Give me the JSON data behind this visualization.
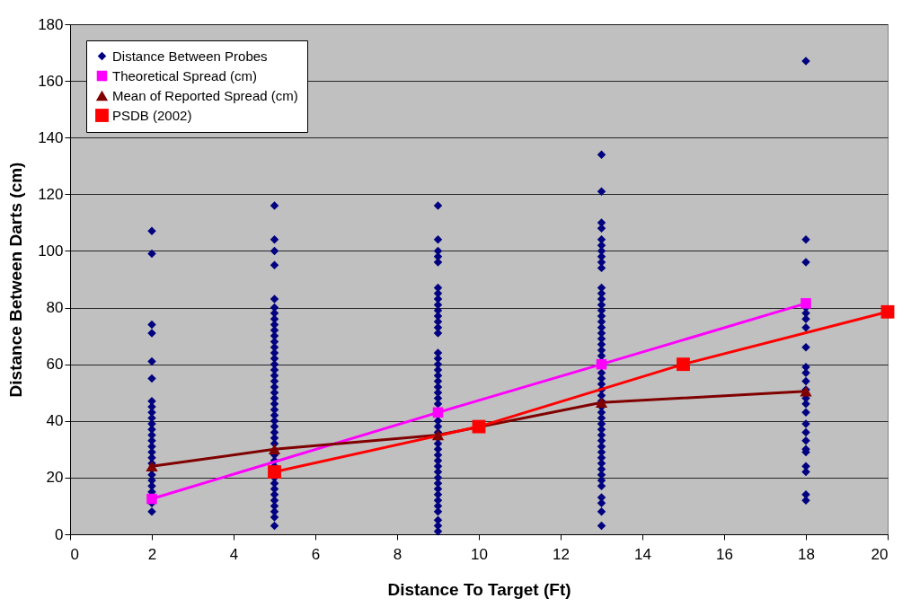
{
  "chart_data": {
    "type": "scatter",
    "xlabel": "Distance To Target (Ft)",
    "ylabel": "Distance Between Darts (cm)",
    "xlim": [
      0,
      20
    ],
    "ylim": [
      0,
      180
    ],
    "xticks": [
      0,
      2,
      4,
      6,
      8,
      10,
      12,
      14,
      16,
      18,
      20
    ],
    "yticks": [
      0,
      20,
      40,
      60,
      80,
      100,
      120,
      140,
      160,
      180
    ],
    "grid": "y",
    "legend": "top left",
    "series": [
      {
        "name": "Distance Between Probes",
        "marker": "diamond",
        "color": "#000080",
        "x": [
          2,
          2,
          2,
          2,
          2,
          2,
          2,
          2,
          2,
          2,
          2,
          2,
          2,
          2,
          2,
          2,
          2,
          2,
          2,
          2,
          2,
          2,
          2,
          2,
          2,
          5,
          5,
          5,
          5,
          5,
          5,
          5,
          5,
          5,
          5,
          5,
          5,
          5,
          5,
          5,
          5,
          5,
          5,
          5,
          5,
          5,
          5,
          5,
          5,
          5,
          5,
          5,
          5,
          5,
          5,
          5,
          5,
          5,
          5,
          5,
          5,
          5,
          5,
          5,
          5,
          5,
          5,
          9,
          9,
          9,
          9,
          9,
          9,
          9,
          9,
          9,
          9,
          9,
          9,
          9,
          9,
          9,
          9,
          9,
          9,
          9,
          9,
          9,
          9,
          9,
          9,
          9,
          9,
          9,
          9,
          9,
          9,
          9,
          9,
          9,
          9,
          9,
          9,
          9,
          9,
          9,
          9,
          9,
          9,
          9,
          9,
          9,
          13,
          13,
          13,
          13,
          13,
          13,
          13,
          13,
          13,
          13,
          13,
          13,
          13,
          13,
          13,
          13,
          13,
          13,
          13,
          13,
          13,
          13,
          13,
          13,
          13,
          13,
          13,
          13,
          13,
          13,
          13,
          13,
          13,
          13,
          13,
          13,
          13,
          13,
          13,
          13,
          13,
          13,
          13,
          13,
          13,
          13,
          13,
          13,
          13,
          18,
          18,
          18,
          18,
          18,
          18,
          18,
          18,
          18,
          18,
          18,
          18,
          18,
          18,
          18,
          18,
          18,
          18,
          18,
          18,
          18,
          18,
          18,
          18
        ],
        "values": [
          107,
          99,
          74,
          71,
          61,
          55,
          47,
          45,
          43,
          41,
          39,
          37,
          35,
          33,
          31,
          29,
          27,
          25,
          23,
          21,
          19,
          17,
          15,
          11,
          8,
          116,
          104,
          100,
          95,
          83,
          80,
          78,
          76,
          74,
          72,
          70,
          68,
          66,
          64,
          62,
          60,
          58,
          56,
          54,
          52,
          50,
          48,
          46,
          44,
          42,
          40,
          38,
          36,
          34,
          32,
          28,
          26,
          24,
          20,
          18,
          16,
          14,
          12,
          10,
          8,
          6,
          3,
          116,
          104,
          100,
          98,
          96,
          87,
          85,
          83,
          81,
          79,
          77,
          75,
          73,
          71,
          64,
          62,
          60,
          58,
          56,
          54,
          52,
          50,
          48,
          46,
          42,
          40,
          38,
          36,
          34,
          32,
          30,
          28,
          26,
          24,
          22,
          20,
          18,
          16,
          14,
          12,
          10,
          8,
          5,
          3,
          1,
          134,
          121,
          110,
          108,
          104,
          102,
          100,
          98,
          96,
          94,
          87,
          85,
          83,
          81,
          79,
          77,
          75,
          73,
          71,
          69,
          67,
          65,
          63,
          61,
          57,
          55,
          53,
          51,
          49,
          47,
          45,
          43,
          41,
          39,
          37,
          35,
          33,
          31,
          29,
          27,
          25,
          23,
          21,
          19,
          17,
          13,
          11,
          8,
          3,
          167,
          104,
          96,
          80,
          78,
          76,
          73,
          66,
          59,
          57,
          54,
          51,
          48,
          46,
          43,
          39,
          36,
          33,
          30,
          29,
          24,
          22,
          14,
          12
        ]
      },
      {
        "name": "Theoretical Spread (cm)",
        "type": "line",
        "marker": "square",
        "color": "#ff00ff",
        "x": [
          2,
          9,
          13,
          18
        ],
        "values": [
          12.5,
          43,
          60,
          81.5
        ]
      },
      {
        "name": "Mean of Reported Spread (cm)",
        "type": "line",
        "marker": "triangle",
        "color": "#800000",
        "x": [
          2,
          5,
          9,
          13,
          18
        ],
        "values": [
          24,
          30,
          35,
          46.5,
          50.5
        ]
      },
      {
        "name": "PSDB (2002)",
        "type": "line",
        "marker": "square",
        "color": "#ff0000",
        "x": [
          5,
          10,
          15,
          20
        ],
        "values": [
          22,
          38,
          60,
          78.5
        ]
      }
    ]
  }
}
